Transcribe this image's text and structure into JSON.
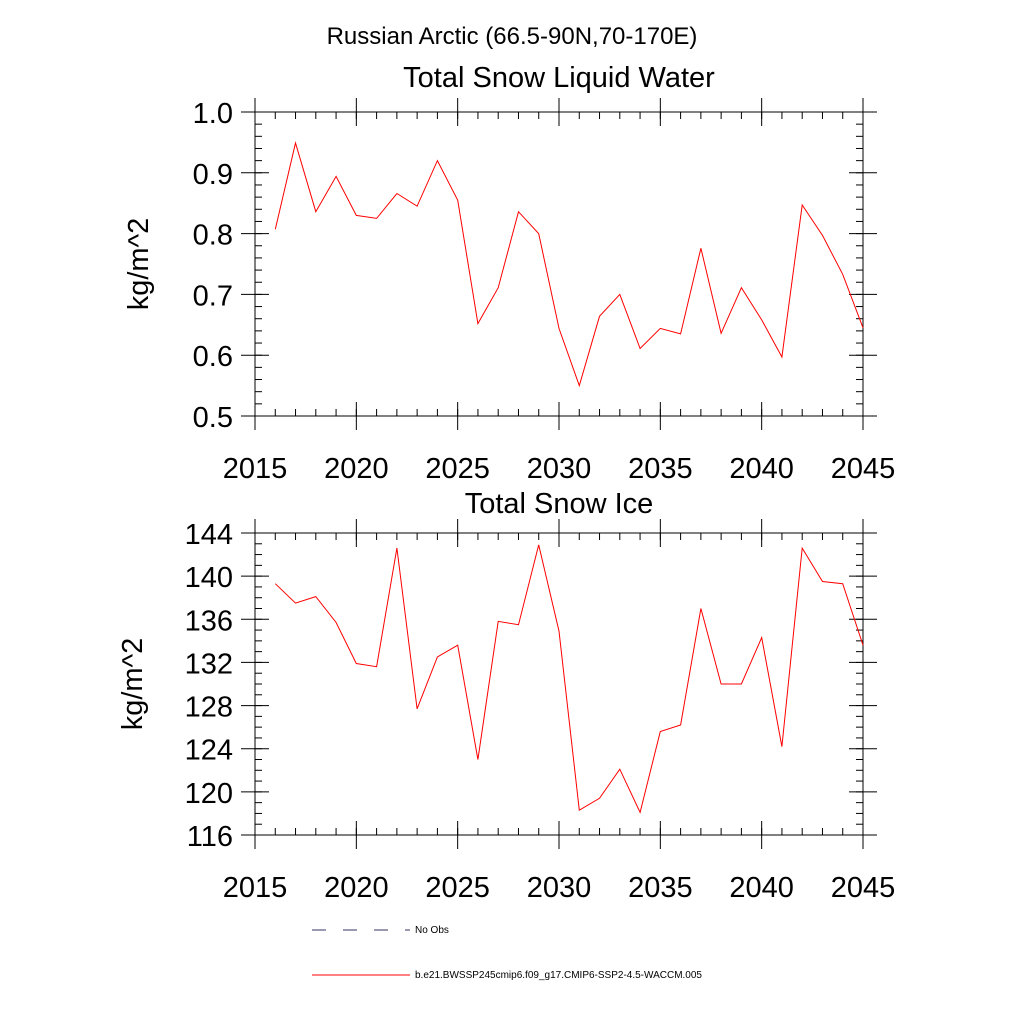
{
  "figure": {
    "suptitle": "Russian Arctic (66.5-90N,70-170E)"
  },
  "legend": {
    "placement": "bottom",
    "entries": [
      {
        "label": "No Obs",
        "color": "#333366",
        "style": "dashed"
      },
      {
        "label": "b.e21.BWSSP245cmip6.f09_g17.CMIP6-SSP2-4.5-WACCM.005",
        "color": "#ff0000",
        "style": "solid"
      }
    ]
  },
  "chart_data": [
    {
      "type": "line",
      "title": "Total Snow Liquid Water",
      "xlabel": "",
      "ylabel": "kg/m^2",
      "xlim": [
        2015,
        2045
      ],
      "ylim": [
        0.5,
        1.0
      ],
      "xticks": [
        2015,
        2020,
        2025,
        2030,
        2035,
        2040,
        2045
      ],
      "yticks": [
        0.5,
        0.6,
        0.7,
        0.8,
        0.9,
        1.0
      ],
      "ytick_labels": [
        "0.5",
        "0.6",
        "0.7",
        "0.8",
        "0.9",
        "1.0"
      ],
      "yminor_step": 0.02,
      "grid": false,
      "x": [
        2016,
        2017,
        2018,
        2019,
        2020,
        2021,
        2022,
        2023,
        2024,
        2025,
        2026,
        2027,
        2028,
        2029,
        2030,
        2031,
        2032,
        2033,
        2034,
        2035,
        2036,
        2037,
        2038,
        2039,
        2040,
        2041,
        2042,
        2043,
        2044,
        2045
      ],
      "series": [
        {
          "name": "b.e21.BWSSP245cmip6.f09_g17.CMIP6-SSP2-4.5-WACCM.005",
          "color": "#ff0000",
          "values": [
            0.807,
            0.949,
            0.836,
            0.894,
            0.83,
            0.825,
            0.866,
            0.845,
            0.92,
            0.855,
            0.652,
            0.711,
            0.836,
            0.8,
            0.644,
            0.55,
            0.664,
            0.7,
            0.611,
            0.644,
            0.635,
            0.776,
            0.636,
            0.711,
            0.658,
            0.597,
            0.847,
            0.797,
            0.733,
            0.645
          ]
        }
      ]
    },
    {
      "type": "line",
      "title": "Total Snow Ice",
      "xlabel": "",
      "ylabel": "kg/m^2",
      "xlim": [
        2015,
        2045
      ],
      "ylim": [
        116,
        144
      ],
      "xticks": [
        2015,
        2020,
        2025,
        2030,
        2035,
        2040,
        2045
      ],
      "yticks": [
        116,
        120,
        124,
        128,
        132,
        136,
        140,
        144
      ],
      "ytick_labels": [
        "116",
        "120",
        "124",
        "128",
        "132",
        "136",
        "140",
        "144"
      ],
      "yminor_step": 1,
      "grid": false,
      "x": [
        2016,
        2017,
        2018,
        2019,
        2020,
        2021,
        2022,
        2023,
        2024,
        2025,
        2026,
        2027,
        2028,
        2029,
        2030,
        2031,
        2032,
        2033,
        2034,
        2035,
        2036,
        2037,
        2038,
        2039,
        2040,
        2041,
        2042,
        2043,
        2044,
        2045
      ],
      "series": [
        {
          "name": "b.e21.BWSSP245cmip6.f09_g17.CMIP6-SSP2-4.5-WACCM.005",
          "color": "#ff0000",
          "values": [
            139.3,
            137.5,
            138.1,
            135.7,
            131.9,
            131.6,
            142.6,
            127.7,
            132.5,
            133.6,
            123.0,
            135.8,
            135.5,
            142.9,
            134.9,
            118.3,
            119.4,
            122.1,
            118.1,
            125.6,
            126.2,
            137.0,
            130.0,
            130.0,
            134.3,
            124.2,
            142.6,
            139.5,
            139.3,
            133.6
          ]
        }
      ]
    }
  ]
}
